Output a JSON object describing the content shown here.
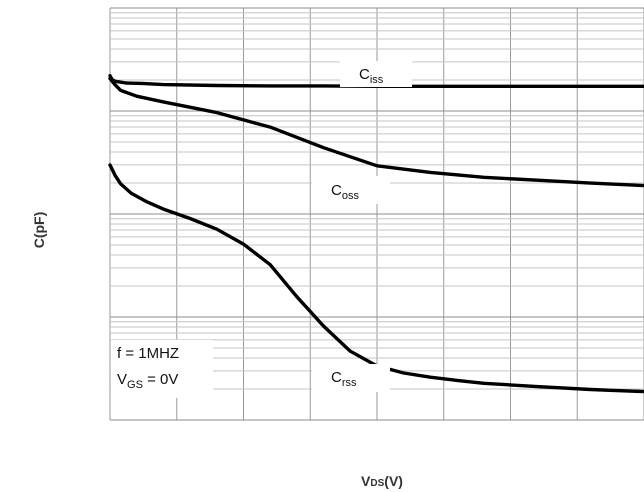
{
  "chart_data": {
    "type": "line",
    "title": "",
    "xlabel": "VDS(V)",
    "xlabel_main": "V",
    "xlabel_sub": "DS",
    "xlabel_tail": "(V)",
    "ylabel": "C(pF)",
    "x_ticks_labeled": false,
    "y_ticks_labeled": false,
    "grid": true,
    "grid_style": "major/minor",
    "y_scale": "log",
    "x_range_relative": [
      0,
      1
    ],
    "y_range_relative": [
      0,
      1
    ],
    "series": [
      {
        "name": "Ciss",
        "label_main": "C",
        "label_sub": "iss",
        "x": [
          0,
          0.004,
          0.01,
          0.03,
          0.06,
          0.1,
          0.2,
          0.3,
          0.4,
          0.5,
          0.6,
          0.7,
          0.8,
          0.9,
          1.0
        ],
        "y": [
          0.836,
          0.826,
          0.822,
          0.818,
          0.817,
          0.814,
          0.812,
          0.811,
          0.811,
          0.81,
          0.81,
          0.81,
          0.81,
          0.81,
          0.81
        ]
      },
      {
        "name": "Coss",
        "label_main": "C",
        "label_sub": "oss",
        "x": [
          0,
          0.01,
          0.02,
          0.05,
          0.1,
          0.2,
          0.3,
          0.4,
          0.5,
          0.6,
          0.7,
          0.8,
          0.9,
          1.0
        ],
        "y": [
          0.829,
          0.813,
          0.8,
          0.786,
          0.772,
          0.746,
          0.711,
          0.661,
          0.617,
          0.601,
          0.589,
          0.582,
          0.575,
          0.569
        ]
      },
      {
        "name": "Crss",
        "label_main": "C",
        "label_sub": "rss",
        "x": [
          0,
          0.01,
          0.02,
          0.04,
          0.07,
          0.1,
          0.15,
          0.2,
          0.25,
          0.3,
          0.35,
          0.4,
          0.45,
          0.5,
          0.55,
          0.6,
          0.65,
          0.7,
          0.8,
          0.9,
          1.0
        ],
        "y": [
          0.619,
          0.593,
          0.573,
          0.55,
          0.529,
          0.512,
          0.489,
          0.463,
          0.427,
          0.377,
          0.299,
          0.228,
          0.167,
          0.131,
          0.114,
          0.104,
          0.096,
          0.089,
          0.081,
          0.074,
          0.069
        ]
      }
    ],
    "annotations": {
      "line1": "f = 1MHZ",
      "line2_main": "V",
      "line2_sub": "GS",
      "line2_tail": " = 0V"
    }
  }
}
